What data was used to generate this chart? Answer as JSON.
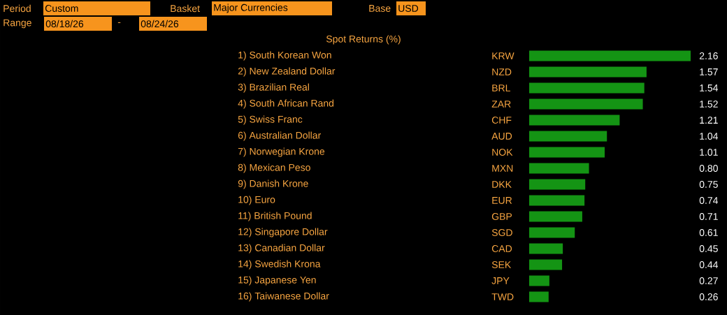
{
  "chart_data": {
    "type": "bar",
    "orientation": "horizontal",
    "title": "Spot Returns (%)",
    "categories": [
      "1) South Korean Won",
      "2) New Zealand Dollar",
      "3) Brazilian Real",
      "4) South African Rand",
      "5) Swiss Franc",
      "6) Australian Dollar",
      "7) Norwegian Krone",
      "8) Mexican Peso",
      "9) Danish Krone",
      "10) Euro",
      "11) British Pound",
      "12) Singapore Dollar",
      "13) Canadian Dollar",
      "14) Swedish Krona",
      "15) Japanese Yen",
      "16) Taiwanese Dollar"
    ],
    "values": [
      2.16,
      1.57,
      1.54,
      1.52,
      1.21,
      1.04,
      1.01,
      0.8,
      0.75,
      0.74,
      0.71,
      0.61,
      0.45,
      0.44,
      0.27,
      0.26
    ],
    "value_labels": [
      "2.16",
      "1.57",
      "1.54",
      "1.52",
      "1.21",
      "1.04",
      "1.01",
      "0.80",
      "0.75",
      "0.74",
      "0.71",
      "0.61",
      "0.45",
      "0.44",
      "0.27",
      "0.26"
    ],
    "color": "#149414",
    "annotations": [
      "KRW",
      "NZD",
      "BRL",
      "ZAR",
      "CHF",
      "AUD",
      "NOK",
      "MXN",
      "DKK",
      "EUR",
      "GBP",
      "SGD",
      "CAD",
      "SEK",
      "JPY",
      "TWD",
      "Period",
      "Custom",
      "Basket",
      "Major Currencies",
      "Base",
      "USD",
      "Range",
      "08/18/26",
      "-",
      "08/24/26"
    ]
  }
}
